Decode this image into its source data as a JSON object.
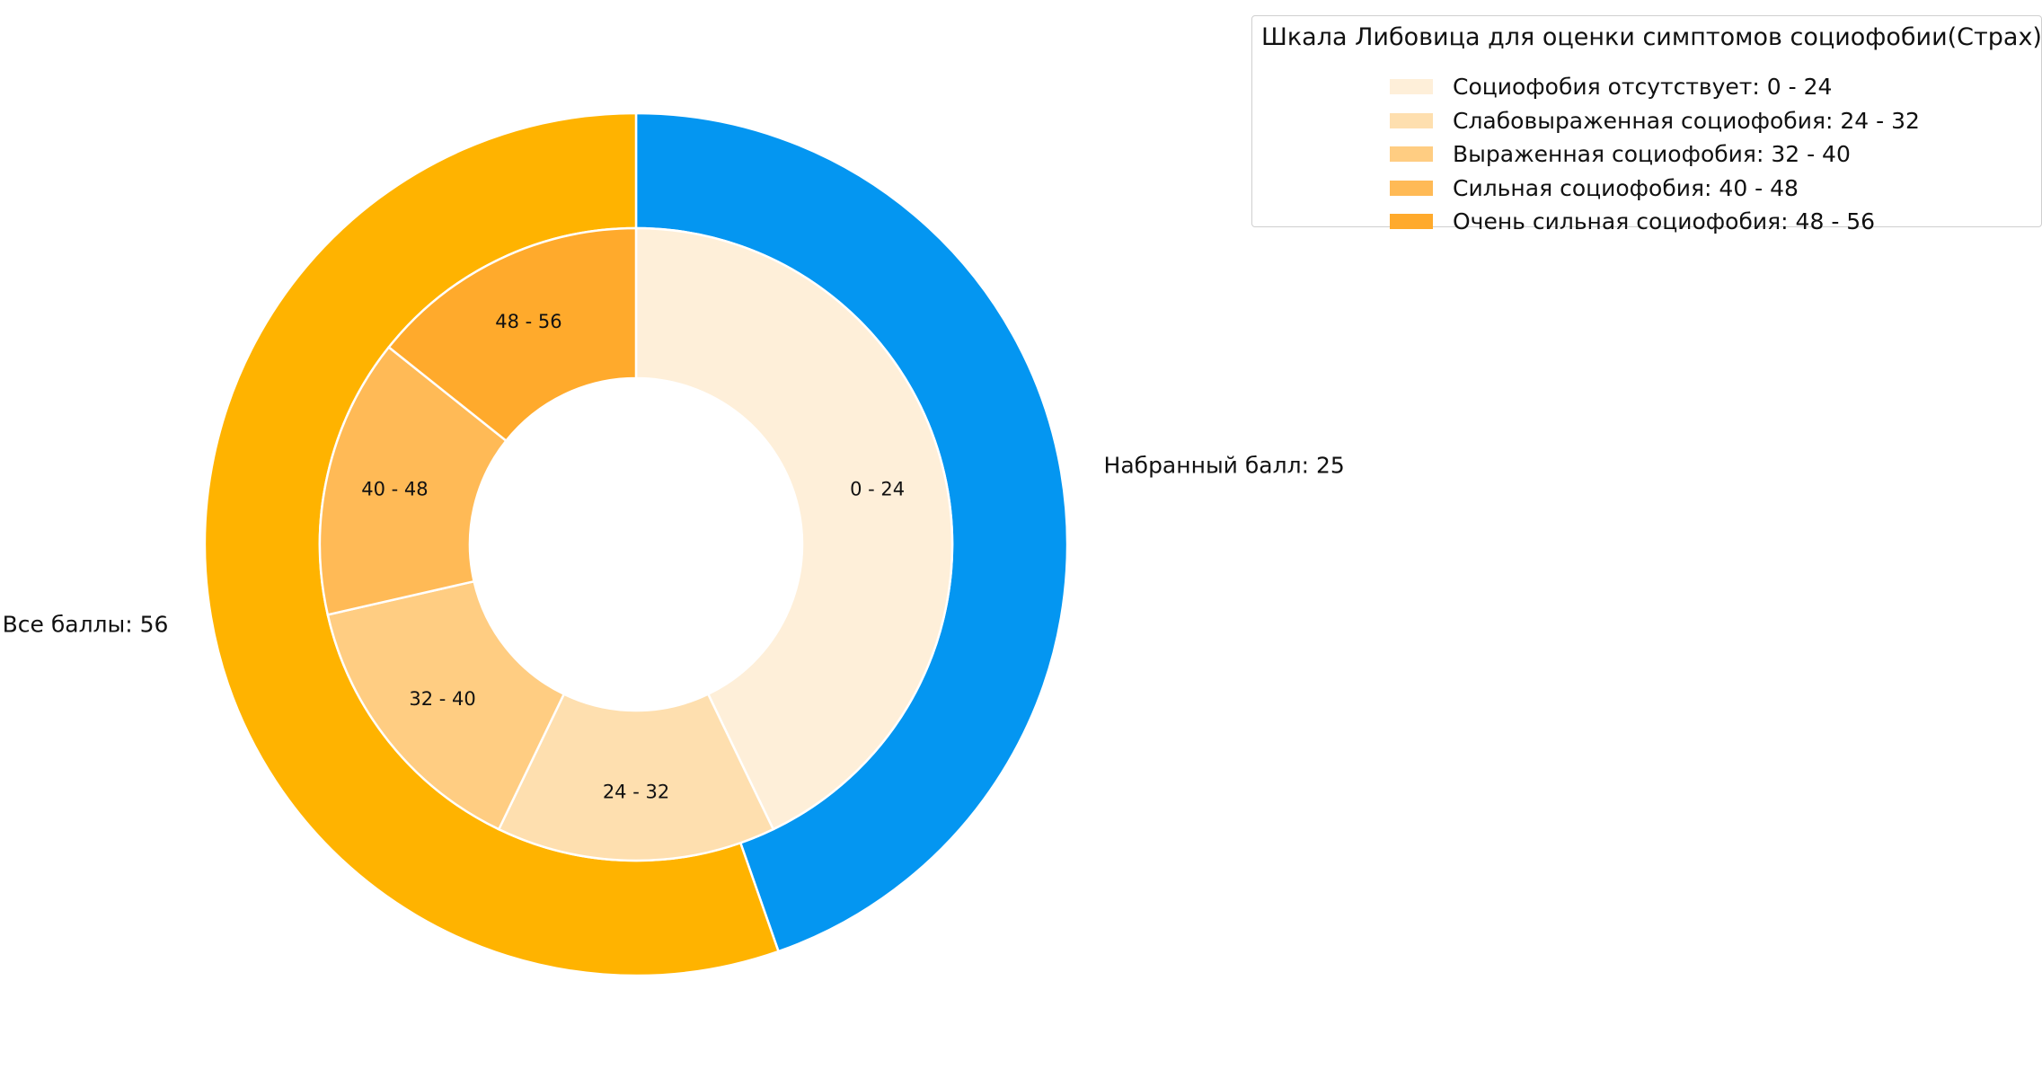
{
  "chart_data": {
    "type": "pie",
    "title": "",
    "outer_ring": [
      {
        "label": "Набранный балл: 25",
        "value": 25,
        "color": "#0496F1"
      },
      {
        "label": "Все баллы: 56",
        "value": 31,
        "color": "#FFB300"
      }
    ],
    "inner_ring": [
      {
        "label": "0 - 24",
        "value": 24,
        "color": "#FEEFD9"
      },
      {
        "label": "24 - 32",
        "value": 8,
        "color": "#FEDFAF"
      },
      {
        "label": "32 - 40",
        "value": 8,
        "color": "#FFCD82"
      },
      {
        "label": "40 - 48",
        "value": 8,
        "color": "#FFBA56"
      },
      {
        "label": "48 - 56",
        "value": 8,
        "color": "#FFAA2C"
      }
    ],
    "legend": {
      "title": "Шкала Либовица для оценки симптомов социофобии(Страх)",
      "placement": "top-right",
      "entries": [
        {
          "label": "Социофобия отсутствует: 0 - 24",
          "color": "#FEEFD9"
        },
        {
          "label": "Слабовыраженная социофобия: 24 - 32",
          "color": "#FEDFAF"
        },
        {
          "label": "Выраженная социофобия: 32 - 40",
          "color": "#FFCD82"
        },
        {
          "label": "Сильная социофобия: 40 - 48",
          "color": "#FFBA56"
        },
        {
          "label": "Очень сильная социофобия: 48 - 56",
          "color": "#FFAA2C"
        }
      ]
    }
  }
}
